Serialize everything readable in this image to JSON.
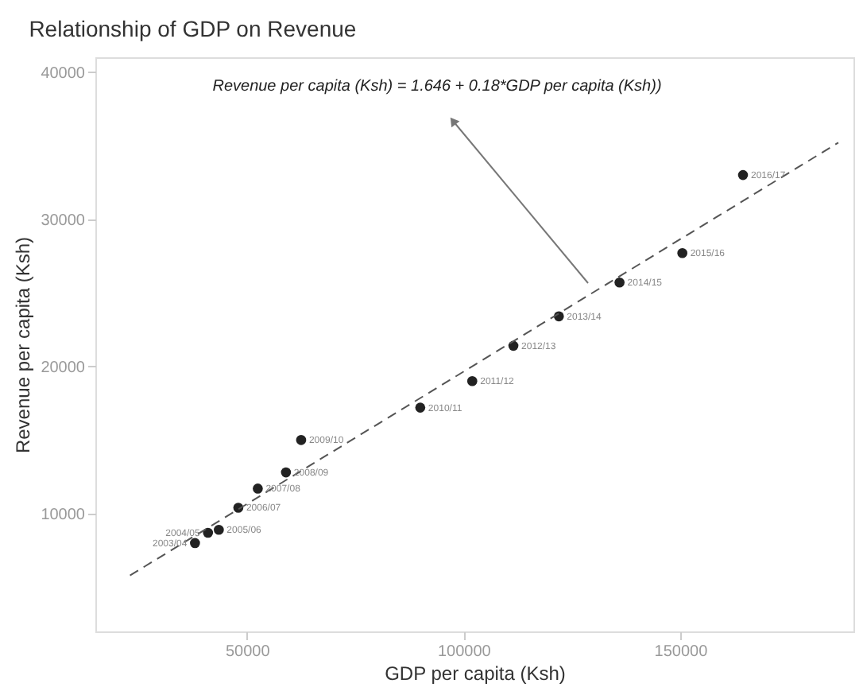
{
  "chart_data": {
    "type": "scatter",
    "title": "Relationship of GDP on Revenue",
    "xlabel": "GDP per capita (Ksh)",
    "ylabel": "Revenue per capita (Ksh)",
    "series": [
      {
        "color": "#222222",
        "marker": "circle",
        "x": [
          38000,
          41000,
          43500,
          48000,
          52500,
          59000,
          62500,
          90000,
          102000,
          111500,
          122000,
          136000,
          150500,
          164500
        ],
        "values": [
          8000,
          8700,
          8900,
          10400,
          11700,
          12800,
          15000,
          17200,
          19000,
          21400,
          23400,
          25700,
          27700,
          33000
        ]
      },
      {
        "type": "line",
        "color": "#555555",
        "line_style": "dashed",
        "x": [
          23000,
          186500
        ],
        "values": [
          5800,
          35200
        ]
      }
    ],
    "annotations": [
      "Revenue per capita (Ksh) = 1.646 + 0.18*GDP per capita (Ksh))",
      {
        "text": "2003/04",
        "x": 38000,
        "y": 8000
      },
      {
        "text": "2004/05",
        "x": 41000,
        "y": 8700
      },
      {
        "text": "2005/06",
        "x": 43500,
        "y": 8900
      },
      {
        "text": "2006/07",
        "x": 48000,
        "y": 10400
      },
      {
        "text": "2007/08",
        "x": 52500,
        "y": 11700
      },
      {
        "text": "2008/09",
        "x": 59000,
        "y": 12800
      },
      {
        "text": "2009/10",
        "x": 62500,
        "y": 15000
      },
      {
        "text": "2010/11",
        "x": 90000,
        "y": 17200
      },
      {
        "text": "2011/12",
        "x": 102000,
        "y": 19000
      },
      {
        "text": "2012/13",
        "x": 111500,
        "y": 21400
      },
      {
        "text": "2013/14",
        "x": 122000,
        "y": 23400
      },
      {
        "text": "2014/15",
        "x": 136000,
        "y": 25700
      },
      {
        "text": "2015/16",
        "x": 150500,
        "y": 27700
      },
      {
        "text": "2016/17",
        "x": 164500,
        "y": 33000
      }
    ],
    "xlim": [
      15000,
      190000
    ],
    "xticks": [
      50000,
      100000,
      150000
    ],
    "ylim": [
      2000,
      41000
    ],
    "yticks": [
      10000,
      20000,
      30000,
      40000
    ],
    "grid": false
  }
}
